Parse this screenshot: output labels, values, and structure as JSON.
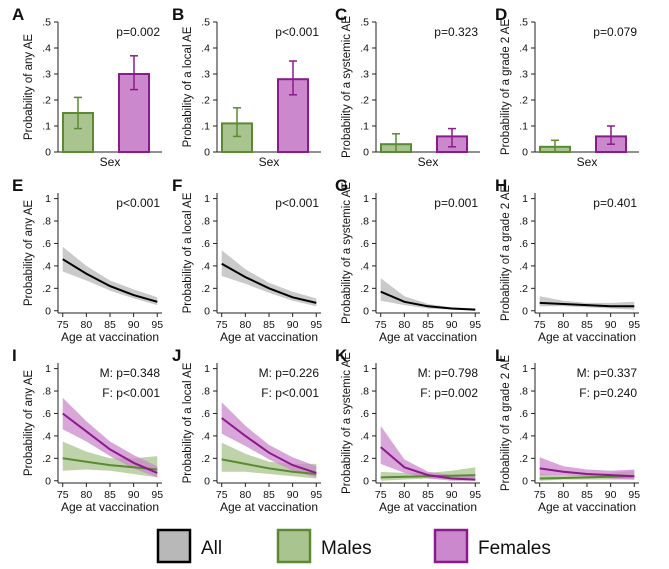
{
  "colors": {
    "all_line": "#000000",
    "all_fill": "#b8b8b8",
    "male_line": "#5a8a32",
    "male_fill": "#a9c48f",
    "female_line": "#8b1a8b",
    "female_fill": "#cc88cc"
  },
  "legend": {
    "items": [
      "All",
      "Males",
      "Females"
    ]
  },
  "chart_data": [
    {
      "panel": "A",
      "type": "bar",
      "ylabel": "Probability of any AE",
      "xlabel": "Sex",
      "ylim": [
        0,
        0.5
      ],
      "yticks": [
        "0",
        ".1",
        ".2",
        ".3",
        ".4",
        ".5"
      ],
      "annotation": "p=0.002",
      "series": [
        {
          "name": "Males",
          "value": 0.15,
          "ci": [
            0.09,
            0.21
          ]
        },
        {
          "name": "Females",
          "value": 0.3,
          "ci": [
            0.24,
            0.37
          ]
        }
      ]
    },
    {
      "panel": "B",
      "type": "bar",
      "ylabel": "Probability of a local AE",
      "xlabel": "Sex",
      "ylim": [
        0,
        0.5
      ],
      "yticks": [
        "0",
        ".1",
        ".2",
        ".3",
        ".4",
        ".5"
      ],
      "annotation": "p<0.001",
      "series": [
        {
          "name": "Males",
          "value": 0.11,
          "ci": [
            0.06,
            0.17
          ]
        },
        {
          "name": "Females",
          "value": 0.28,
          "ci": [
            0.22,
            0.35
          ]
        }
      ]
    },
    {
      "panel": "C",
      "type": "bar",
      "ylabel": "Probability of a systemic AE",
      "xlabel": "Sex",
      "ylim": [
        0,
        0.5
      ],
      "yticks": [
        "0",
        ".1",
        ".2",
        ".3",
        ".4",
        ".5"
      ],
      "annotation": "p=0.323",
      "series": [
        {
          "name": "Males",
          "value": 0.03,
          "ci": [
            0.0,
            0.07
          ]
        },
        {
          "name": "Females",
          "value": 0.06,
          "ci": [
            0.02,
            0.09
          ]
        }
      ]
    },
    {
      "panel": "D",
      "type": "bar",
      "ylabel": "Probability of a grade 2 AE",
      "xlabel": "Sex",
      "ylim": [
        0,
        0.5
      ],
      "yticks": [
        "0",
        ".1",
        ".2",
        ".3",
        ".4",
        ".5"
      ],
      "annotation": "p=0.079",
      "series": [
        {
          "name": "Males",
          "value": 0.02,
          "ci": [
            0.0,
            0.045
          ]
        },
        {
          "name": "Females",
          "value": 0.06,
          "ci": [
            0.03,
            0.1
          ]
        }
      ]
    },
    {
      "panel": "E",
      "type": "line",
      "ylabel": "Probability of any AE",
      "xlabel": "Age at vaccination",
      "xlim": [
        74,
        96
      ],
      "ylim": [
        -0.02,
        1.05
      ],
      "xticks": [
        75,
        80,
        85,
        90,
        95
      ],
      "yticks": [
        "0",
        ".2",
        ".4",
        ".6",
        ".8",
        "1"
      ],
      "annotations": [
        "p<0.001"
      ],
      "series": [
        {
          "name": "All",
          "x": [
            75,
            80,
            85,
            90,
            95
          ],
          "y": [
            0.46,
            0.33,
            0.22,
            0.14,
            0.08
          ],
          "lower": [
            0.35,
            0.27,
            0.18,
            0.11,
            0.05
          ],
          "upper": [
            0.57,
            0.4,
            0.27,
            0.19,
            0.12
          ]
        }
      ]
    },
    {
      "panel": "F",
      "type": "line",
      "ylabel": "Probability of a local AE",
      "xlabel": "Age at vaccination",
      "xlim": [
        74,
        96
      ],
      "ylim": [
        -0.02,
        1.05
      ],
      "xticks": [
        75,
        80,
        85,
        90,
        95
      ],
      "yticks": [
        "0",
        ".2",
        ".4",
        ".6",
        ".8",
        "1"
      ],
      "annotations": [
        "p<0.001"
      ],
      "series": [
        {
          "name": "All",
          "x": [
            75,
            80,
            85,
            90,
            95
          ],
          "y": [
            0.42,
            0.3,
            0.2,
            0.12,
            0.07
          ],
          "lower": [
            0.31,
            0.24,
            0.16,
            0.09,
            0.04
          ],
          "upper": [
            0.54,
            0.37,
            0.25,
            0.17,
            0.11
          ]
        }
      ]
    },
    {
      "panel": "G",
      "type": "line",
      "ylabel": "Probability of a systemic AE",
      "xlabel": "Age at vaccination",
      "xlim": [
        74,
        96
      ],
      "ylim": [
        -0.02,
        1.05
      ],
      "xticks": [
        75,
        80,
        85,
        90,
        95
      ],
      "yticks": [
        "0",
        ".2",
        ".4",
        ".6",
        ".8",
        "1"
      ],
      "annotations": [
        "p=0.001"
      ],
      "series": [
        {
          "name": "All",
          "x": [
            75,
            80,
            85,
            90,
            95
          ],
          "y": [
            0.17,
            0.08,
            0.04,
            0.02,
            0.01
          ],
          "lower": [
            0.09,
            0.05,
            0.02,
            0.01,
            0.0
          ],
          "upper": [
            0.29,
            0.13,
            0.06,
            0.03,
            0.02
          ]
        }
      ]
    },
    {
      "panel": "H",
      "type": "line",
      "ylabel": "Probability of a grade 2 AE",
      "xlabel": "Age at vaccination",
      "xlim": [
        74,
        96
      ],
      "ylim": [
        -0.02,
        1.05
      ],
      "xticks": [
        75,
        80,
        85,
        90,
        95
      ],
      "yticks": [
        "0",
        ".2",
        ".4",
        ".6",
        ".8",
        "1"
      ],
      "annotations": [
        "p=0.401"
      ],
      "series": [
        {
          "name": "All",
          "x": [
            75,
            80,
            85,
            90,
            95
          ],
          "y": [
            0.07,
            0.06,
            0.05,
            0.04,
            0.04
          ],
          "lower": [
            0.04,
            0.04,
            0.03,
            0.02,
            0.01
          ],
          "upper": [
            0.13,
            0.09,
            0.07,
            0.07,
            0.08
          ]
        }
      ]
    },
    {
      "panel": "I",
      "type": "line",
      "ylabel": "Probability of any AE",
      "xlabel": "Age at vaccination",
      "xlim": [
        74,
        96
      ],
      "ylim": [
        -0.02,
        1.05
      ],
      "xticks": [
        75,
        80,
        85,
        90,
        95
      ],
      "yticks": [
        "0",
        ".2",
        ".4",
        ".6",
        ".8",
        "1"
      ],
      "annotations": [
        "M: p=0.348",
        "F: p<0.001"
      ],
      "series": [
        {
          "name": "Males",
          "x": [
            75,
            80,
            85,
            90,
            95
          ],
          "y": [
            0.2,
            0.17,
            0.14,
            0.12,
            0.1
          ],
          "lower": [
            0.09,
            0.1,
            0.09,
            0.06,
            0.03
          ],
          "upper": [
            0.35,
            0.26,
            0.2,
            0.2,
            0.22
          ]
        },
        {
          "name": "Females",
          "x": [
            75,
            80,
            85,
            90,
            95
          ],
          "y": [
            0.6,
            0.44,
            0.28,
            0.16,
            0.07
          ],
          "lower": [
            0.46,
            0.35,
            0.22,
            0.11,
            0.03
          ],
          "upper": [
            0.74,
            0.53,
            0.35,
            0.23,
            0.13
          ]
        }
      ]
    },
    {
      "panel": "J",
      "type": "line",
      "ylabel": "Probability of a local AE",
      "xlabel": "Age at vaccination",
      "xlim": [
        74,
        96
      ],
      "ylim": [
        -0.02,
        1.05
      ],
      "xticks": [
        75,
        80,
        85,
        90,
        95
      ],
      "yticks": [
        "0",
        ".2",
        ".4",
        ".6",
        ".8",
        "1"
      ],
      "annotations": [
        "M: p=0.226",
        "F: p<0.001"
      ],
      "series": [
        {
          "name": "Males",
          "x": [
            75,
            80,
            85,
            90,
            95
          ],
          "y": [
            0.19,
            0.15,
            0.11,
            0.08,
            0.06
          ],
          "lower": [
            0.08,
            0.08,
            0.06,
            0.04,
            0.02
          ],
          "upper": [
            0.34,
            0.24,
            0.17,
            0.15,
            0.15
          ]
        },
        {
          "name": "Females",
          "x": [
            75,
            80,
            85,
            90,
            95
          ],
          "y": [
            0.56,
            0.4,
            0.25,
            0.14,
            0.07
          ],
          "lower": [
            0.42,
            0.31,
            0.19,
            0.09,
            0.03
          ],
          "upper": [
            0.7,
            0.49,
            0.32,
            0.21,
            0.13
          ]
        }
      ]
    },
    {
      "panel": "K",
      "type": "line",
      "ylabel": "Probability of a systemic AE",
      "xlabel": "Age at vaccination",
      "xlim": [
        74,
        96
      ],
      "ylim": [
        -0.02,
        1.05
      ],
      "xticks": [
        75,
        80,
        85,
        90,
        95
      ],
      "yticks": [
        "0",
        ".2",
        ".4",
        ".6",
        ".8",
        "1"
      ],
      "annotations": [
        "M: p=0.798",
        "F: p=0.002"
      ],
      "series": [
        {
          "name": "Males",
          "x": [
            75,
            80,
            85,
            90,
            95
          ],
          "y": [
            0.03,
            0.035,
            0.04,
            0.045,
            0.05
          ],
          "lower": [
            0.0,
            0.01,
            0.02,
            0.02,
            0.01
          ],
          "upper": [
            0.08,
            0.07,
            0.07,
            0.09,
            0.12
          ]
        },
        {
          "name": "Females",
          "x": [
            75,
            80,
            85,
            90,
            95
          ],
          "y": [
            0.3,
            0.12,
            0.05,
            0.02,
            0.01
          ],
          "lower": [
            0.15,
            0.07,
            0.02,
            0.0,
            0.0
          ],
          "upper": [
            0.49,
            0.19,
            0.08,
            0.05,
            0.04
          ]
        }
      ]
    },
    {
      "panel": "L",
      "type": "line",
      "ylabel": "Probability of a grade 2 AE",
      "xlabel": "Age at vaccination",
      "xlim": [
        74,
        96
      ],
      "ylim": [
        -0.02,
        1.05
      ],
      "xticks": [
        75,
        80,
        85,
        90,
        95
      ],
      "yticks": [
        "0",
        ".2",
        ".4",
        ".6",
        ".8",
        "1"
      ],
      "annotations": [
        "M: p=0.337",
        "F: p=0.240"
      ],
      "series": [
        {
          "name": "Males",
          "x": [
            75,
            80,
            85,
            90,
            95
          ],
          "y": [
            0.02,
            0.025,
            0.03,
            0.035,
            0.04
          ],
          "lower": [
            0.0,
            0.01,
            0.01,
            0.01,
            0.01
          ],
          "upper": [
            0.06,
            0.05,
            0.05,
            0.07,
            0.09
          ]
        },
        {
          "name": "Females",
          "x": [
            75,
            80,
            85,
            90,
            95
          ],
          "y": [
            0.11,
            0.08,
            0.06,
            0.05,
            0.04
          ],
          "lower": [
            0.05,
            0.05,
            0.04,
            0.02,
            0.01
          ],
          "upper": [
            0.21,
            0.13,
            0.1,
            0.09,
            0.1
          ]
        }
      ]
    }
  ]
}
